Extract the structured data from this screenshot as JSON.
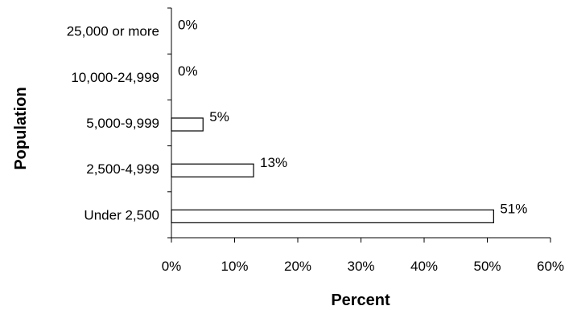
{
  "chart_data": {
    "type": "bar",
    "orientation": "horizontal",
    "categories": [
      "25,000 or more",
      "10,000-24,999",
      "5,000-9,999",
      "2,500-4,999",
      "Under 2,500"
    ],
    "values": [
      0,
      0,
      5,
      13,
      51
    ],
    "data_labels": [
      "0%",
      "0%",
      "5%",
      "13%",
      "51%"
    ],
    "xlabel": "Percent",
    "ylabel": "Population",
    "xlim": [
      0,
      60
    ],
    "x_ticks": [
      0,
      10,
      20,
      30,
      40,
      50,
      60
    ],
    "x_tick_labels": [
      "0%",
      "10%",
      "20%",
      "30%",
      "40%",
      "50%",
      "60%"
    ],
    "grid": false,
    "legend": "none",
    "colors": {
      "bar_fill": "#ffffff",
      "bar_stroke": "#000000",
      "axis": "#000000"
    }
  }
}
